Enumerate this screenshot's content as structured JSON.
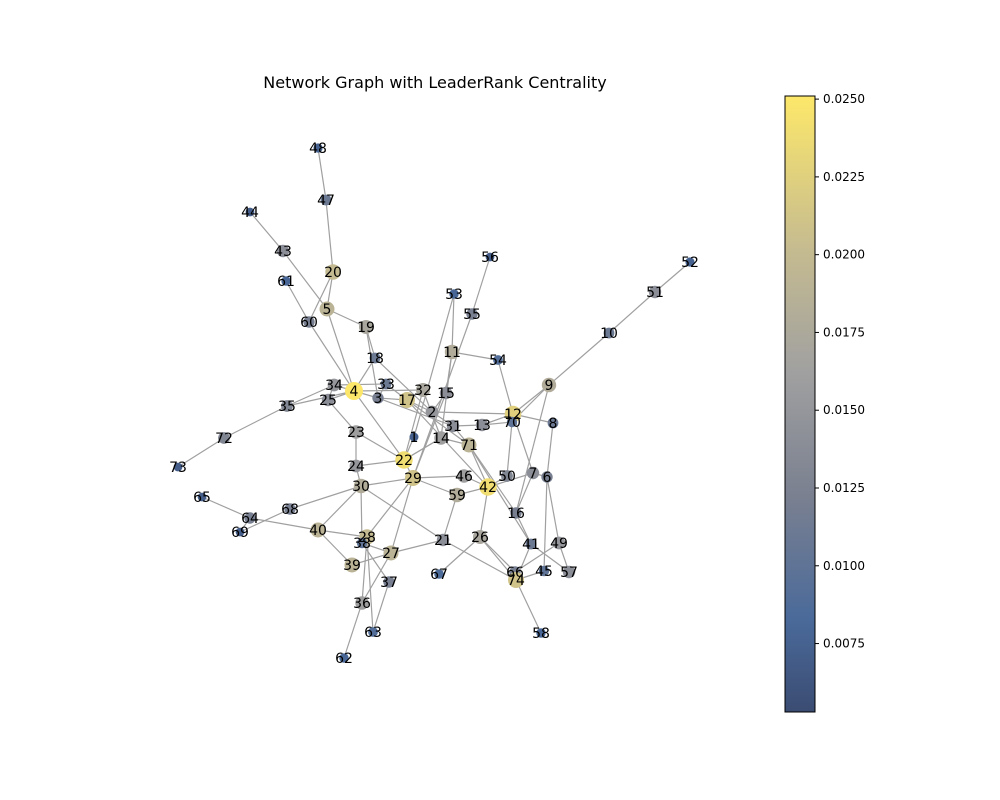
{
  "chart_data": {
    "type": "network",
    "title": "Network Graph with LeaderRank Centrality",
    "colormap": "cividis",
    "colorbar": {
      "range": [
        0.0053,
        0.0251
      ],
      "tick_labels": [
        "0.0075",
        "0.0100",
        "0.0125",
        "0.0150",
        "0.0175",
        "0.0200",
        "0.0225",
        "0.0250"
      ],
      "ticks": [
        0.0075,
        0.01,
        0.0125,
        0.015,
        0.0175,
        0.02,
        0.0225,
        0.025
      ]
    },
    "nodes": [
      {
        "id": "1",
        "value": 0.0072
      },
      {
        "id": "2",
        "value": 0.015
      },
      {
        "id": "3",
        "value": 0.012
      },
      {
        "id": "4",
        "value": 0.025
      },
      {
        "id": "5",
        "value": 0.019
      },
      {
        "id": "6",
        "value": 0.012
      },
      {
        "id": "7",
        "value": 0.014
      },
      {
        "id": "8",
        "value": 0.011
      },
      {
        "id": "9",
        "value": 0.018
      },
      {
        "id": "10",
        "value": 0.011
      },
      {
        "id": "11",
        "value": 0.018
      },
      {
        "id": "12",
        "value": 0.0225
      },
      {
        "id": "13",
        "value": 0.014
      },
      {
        "id": "14",
        "value": 0.016
      },
      {
        "id": "15",
        "value": 0.014
      },
      {
        "id": "16",
        "value": 0.012
      },
      {
        "id": "17",
        "value": 0.021
      },
      {
        "id": "18",
        "value": 0.011
      },
      {
        "id": "19",
        "value": 0.017
      },
      {
        "id": "20",
        "value": 0.02
      },
      {
        "id": "21",
        "value": 0.014
      },
      {
        "id": "22",
        "value": 0.024
      },
      {
        "id": "23",
        "value": 0.016
      },
      {
        "id": "24",
        "value": 0.015
      },
      {
        "id": "25",
        "value": 0.014
      },
      {
        "id": "26",
        "value": 0.017
      },
      {
        "id": "27",
        "value": 0.019
      },
      {
        "id": "28",
        "value": 0.02
      },
      {
        "id": "29",
        "value": 0.021
      },
      {
        "id": "30",
        "value": 0.018
      },
      {
        "id": "31",
        "value": 0.014
      },
      {
        "id": "32",
        "value": 0.017
      },
      {
        "id": "33",
        "value": 0.011
      },
      {
        "id": "34",
        "value": 0.015
      },
      {
        "id": "35",
        "value": 0.013
      },
      {
        "id": "36",
        "value": 0.016
      },
      {
        "id": "37",
        "value": 0.012
      },
      {
        "id": "38",
        "value": 0.01
      },
      {
        "id": "39",
        "value": 0.019
      },
      {
        "id": "40",
        "value": 0.019
      },
      {
        "id": "41",
        "value": 0.011
      },
      {
        "id": "42",
        "value": 0.024
      },
      {
        "id": "43",
        "value": 0.014
      },
      {
        "id": "44",
        "value": 0.007
      },
      {
        "id": "45",
        "value": 0.01
      },
      {
        "id": "46",
        "value": 0.016
      },
      {
        "id": "47",
        "value": 0.011
      },
      {
        "id": "48",
        "value": 0.0075
      },
      {
        "id": "49",
        "value": 0.015
      },
      {
        "id": "50",
        "value": 0.013
      },
      {
        "id": "51",
        "value": 0.014
      },
      {
        "id": "52",
        "value": 0.0075
      },
      {
        "id": "53",
        "value": 0.008
      },
      {
        "id": "54",
        "value": 0.009
      },
      {
        "id": "55",
        "value": 0.012
      },
      {
        "id": "56",
        "value": 0.007
      },
      {
        "id": "57",
        "value": 0.014
      },
      {
        "id": "58",
        "value": 0.008
      },
      {
        "id": "59",
        "value": 0.018
      },
      {
        "id": "60",
        "value": 0.012
      },
      {
        "id": "61",
        "value": 0.008
      },
      {
        "id": "62",
        "value": 0.008
      },
      {
        "id": "63",
        "value": 0.009
      },
      {
        "id": "64",
        "value": 0.012
      },
      {
        "id": "65",
        "value": 0.007
      },
      {
        "id": "66",
        "value": 0.012
      },
      {
        "id": "67",
        "value": 0.0085
      },
      {
        "id": "68",
        "value": 0.012
      },
      {
        "id": "69",
        "value": 0.007
      },
      {
        "id": "70",
        "value": 0.01
      },
      {
        "id": "71",
        "value": 0.019
      },
      {
        "id": "72",
        "value": 0.013
      },
      {
        "id": "73",
        "value": 0.007
      },
      {
        "id": "74",
        "value": 0.021
      }
    ],
    "edges": [
      [
        "48",
        "47"
      ],
      [
        "47",
        "20"
      ],
      [
        "20",
        "5"
      ],
      [
        "20",
        "60"
      ],
      [
        "44",
        "43"
      ],
      [
        "43",
        "5"
      ],
      [
        "61",
        "60"
      ],
      [
        "60",
        "4"
      ],
      [
        "5",
        "19"
      ],
      [
        "5",
        "4"
      ],
      [
        "19",
        "18"
      ],
      [
        "19",
        "3"
      ],
      [
        "18",
        "2"
      ],
      [
        "18",
        "4"
      ],
      [
        "4",
        "34"
      ],
      [
        "4",
        "3"
      ],
      [
        "4",
        "25"
      ],
      [
        "4",
        "35"
      ],
      [
        "4",
        "22"
      ],
      [
        "4",
        "32"
      ],
      [
        "34",
        "33"
      ],
      [
        "34",
        "35"
      ],
      [
        "33",
        "3"
      ],
      [
        "33",
        "17"
      ],
      [
        "3",
        "17"
      ],
      [
        "3",
        "31"
      ],
      [
        "17",
        "32"
      ],
      [
        "17",
        "2"
      ],
      [
        "17",
        "71"
      ],
      [
        "17",
        "42"
      ],
      [
        "32",
        "14"
      ],
      [
        "32",
        "22"
      ],
      [
        "15",
        "2"
      ],
      [
        "15",
        "29"
      ],
      [
        "2",
        "12"
      ],
      [
        "2",
        "31"
      ],
      [
        "31",
        "13"
      ],
      [
        "31",
        "71"
      ],
      [
        "13",
        "70"
      ],
      [
        "13",
        "12"
      ],
      [
        "12",
        "8"
      ],
      [
        "12",
        "9"
      ],
      [
        "12",
        "54"
      ],
      [
        "12",
        "7"
      ],
      [
        "9",
        "10"
      ],
      [
        "9",
        "16"
      ],
      [
        "10",
        "51"
      ],
      [
        "51",
        "52"
      ],
      [
        "54",
        "11"
      ],
      [
        "11",
        "53"
      ],
      [
        "11",
        "15"
      ],
      [
        "11",
        "14"
      ],
      [
        "53",
        "1"
      ],
      [
        "56",
        "55"
      ],
      [
        "55",
        "29"
      ],
      [
        "35",
        "72"
      ],
      [
        "72",
        "73"
      ],
      [
        "25",
        "23"
      ],
      [
        "25",
        "34"
      ],
      [
        "23",
        "22"
      ],
      [
        "23",
        "24"
      ],
      [
        "24",
        "22"
      ],
      [
        "24",
        "30"
      ],
      [
        "22",
        "1"
      ],
      [
        "22",
        "29"
      ],
      [
        "22",
        "14"
      ],
      [
        "14",
        "71"
      ],
      [
        "14",
        "22"
      ],
      [
        "71",
        "42"
      ],
      [
        "71",
        "41"
      ],
      [
        "71",
        "16"
      ],
      [
        "29",
        "30"
      ],
      [
        "29",
        "46"
      ],
      [
        "29",
        "59"
      ],
      [
        "29",
        "38"
      ],
      [
        "29",
        "27"
      ],
      [
        "42",
        "7"
      ],
      [
        "42",
        "59"
      ],
      [
        "42",
        "26"
      ],
      [
        "42",
        "46"
      ],
      [
        "42",
        "50"
      ],
      [
        "7",
        "6"
      ],
      [
        "7",
        "16"
      ],
      [
        "6",
        "49"
      ],
      [
        "6",
        "45"
      ],
      [
        "8",
        "6"
      ],
      [
        "16",
        "41"
      ],
      [
        "41",
        "74"
      ],
      [
        "41",
        "57"
      ],
      [
        "49",
        "57"
      ],
      [
        "49",
        "66"
      ],
      [
        "45",
        "74"
      ],
      [
        "74",
        "58"
      ],
      [
        "74",
        "21"
      ],
      [
        "74",
        "26"
      ],
      [
        "66",
        "26"
      ],
      [
        "26",
        "67"
      ],
      [
        "59",
        "21"
      ],
      [
        "21",
        "30"
      ],
      [
        "30",
        "68"
      ],
      [
        "30",
        "38"
      ],
      [
        "30",
        "40"
      ],
      [
        "64",
        "65"
      ],
      [
        "64",
        "69"
      ],
      [
        "64",
        "40"
      ],
      [
        "68",
        "69"
      ],
      [
        "40",
        "28"
      ],
      [
        "40",
        "39"
      ],
      [
        "28",
        "36"
      ],
      [
        "28",
        "63"
      ],
      [
        "39",
        "27"
      ],
      [
        "38",
        "27"
      ],
      [
        "38",
        "37"
      ],
      [
        "27",
        "36"
      ],
      [
        "27",
        "21"
      ],
      [
        "36",
        "62"
      ],
      [
        "37",
        "63"
      ],
      [
        "50",
        "70"
      ],
      [
        "70",
        "9"
      ]
    ]
  }
}
